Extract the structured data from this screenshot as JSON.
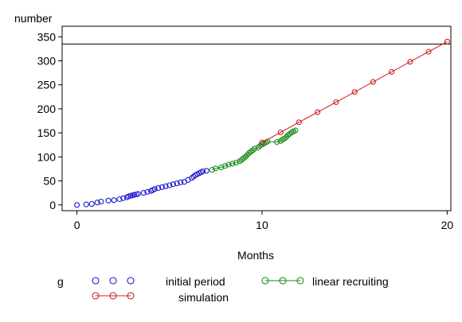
{
  "chart_data": {
    "type": "scatter",
    "ylabel": "number",
    "xlabel": "Months",
    "xlim": [
      -0.8,
      20.2
    ],
    "ylim": [
      -12,
      372
    ],
    "xticks": [
      0,
      10,
      20
    ],
    "yticks": [
      0,
      50,
      100,
      150,
      200,
      250,
      300,
      350
    ],
    "reference_line_y": 335,
    "legend_title": "g",
    "series": [
      {
        "name": "initial period",
        "color": "#1a1acc",
        "connected": false,
        "x": [
          0.0,
          0.5,
          0.8,
          1.1,
          1.3,
          1.7,
          2.0,
          2.3,
          2.5,
          2.7,
          2.8,
          2.9,
          3.0,
          3.1,
          3.2,
          3.3,
          3.6,
          3.8,
          4.0,
          4.1,
          4.2,
          4.4,
          4.6,
          4.8,
          5.0,
          5.2,
          5.4,
          5.6,
          5.8,
          6.0,
          6.2,
          6.3,
          6.4,
          6.5,
          6.6,
          6.7,
          6.8,
          7.0
        ],
        "y": [
          0,
          1,
          2,
          5,
          7,
          9,
          10,
          12,
          14,
          16,
          18,
          19,
          20,
          21,
          22,
          23,
          25,
          27,
          29,
          31,
          33,
          35,
          37,
          39,
          41,
          43,
          45,
          47,
          48,
          52,
          56,
          59,
          62,
          64,
          66,
          68,
          70,
          71
        ]
      },
      {
        "name": "linear recruiting",
        "color": "#1a8a1a",
        "connected": true,
        "x": [
          7.3,
          7.5,
          7.8,
          8.0,
          8.2,
          8.4,
          8.6,
          8.8,
          8.9,
          9.0,
          9.1,
          9.2,
          9.3,
          9.4,
          9.5,
          9.6,
          9.8,
          9.9,
          10.0,
          10.1,
          10.2,
          10.3,
          10.8,
          11.0,
          11.1,
          11.2,
          11.3,
          11.4,
          11.5,
          11.6,
          11.7,
          11.8
        ],
        "y": [
          73,
          76,
          78,
          81,
          84,
          86,
          88,
          91,
          94,
          97,
          100,
          104,
          108,
          111,
          114,
          117,
          120,
          123,
          126,
          128,
          130,
          132,
          131,
          133,
          136,
          138,
          141,
          145,
          148,
          151,
          153,
          155
        ]
      },
      {
        "name": "simulation",
        "color": "#cc2020",
        "connected": true,
        "x": [
          10,
          11,
          12,
          13,
          14,
          15,
          16,
          17,
          18,
          19,
          20
        ],
        "y": [
          130,
          151,
          172,
          193,
          214,
          235,
          256,
          277,
          298,
          319,
          340
        ]
      }
    ]
  }
}
